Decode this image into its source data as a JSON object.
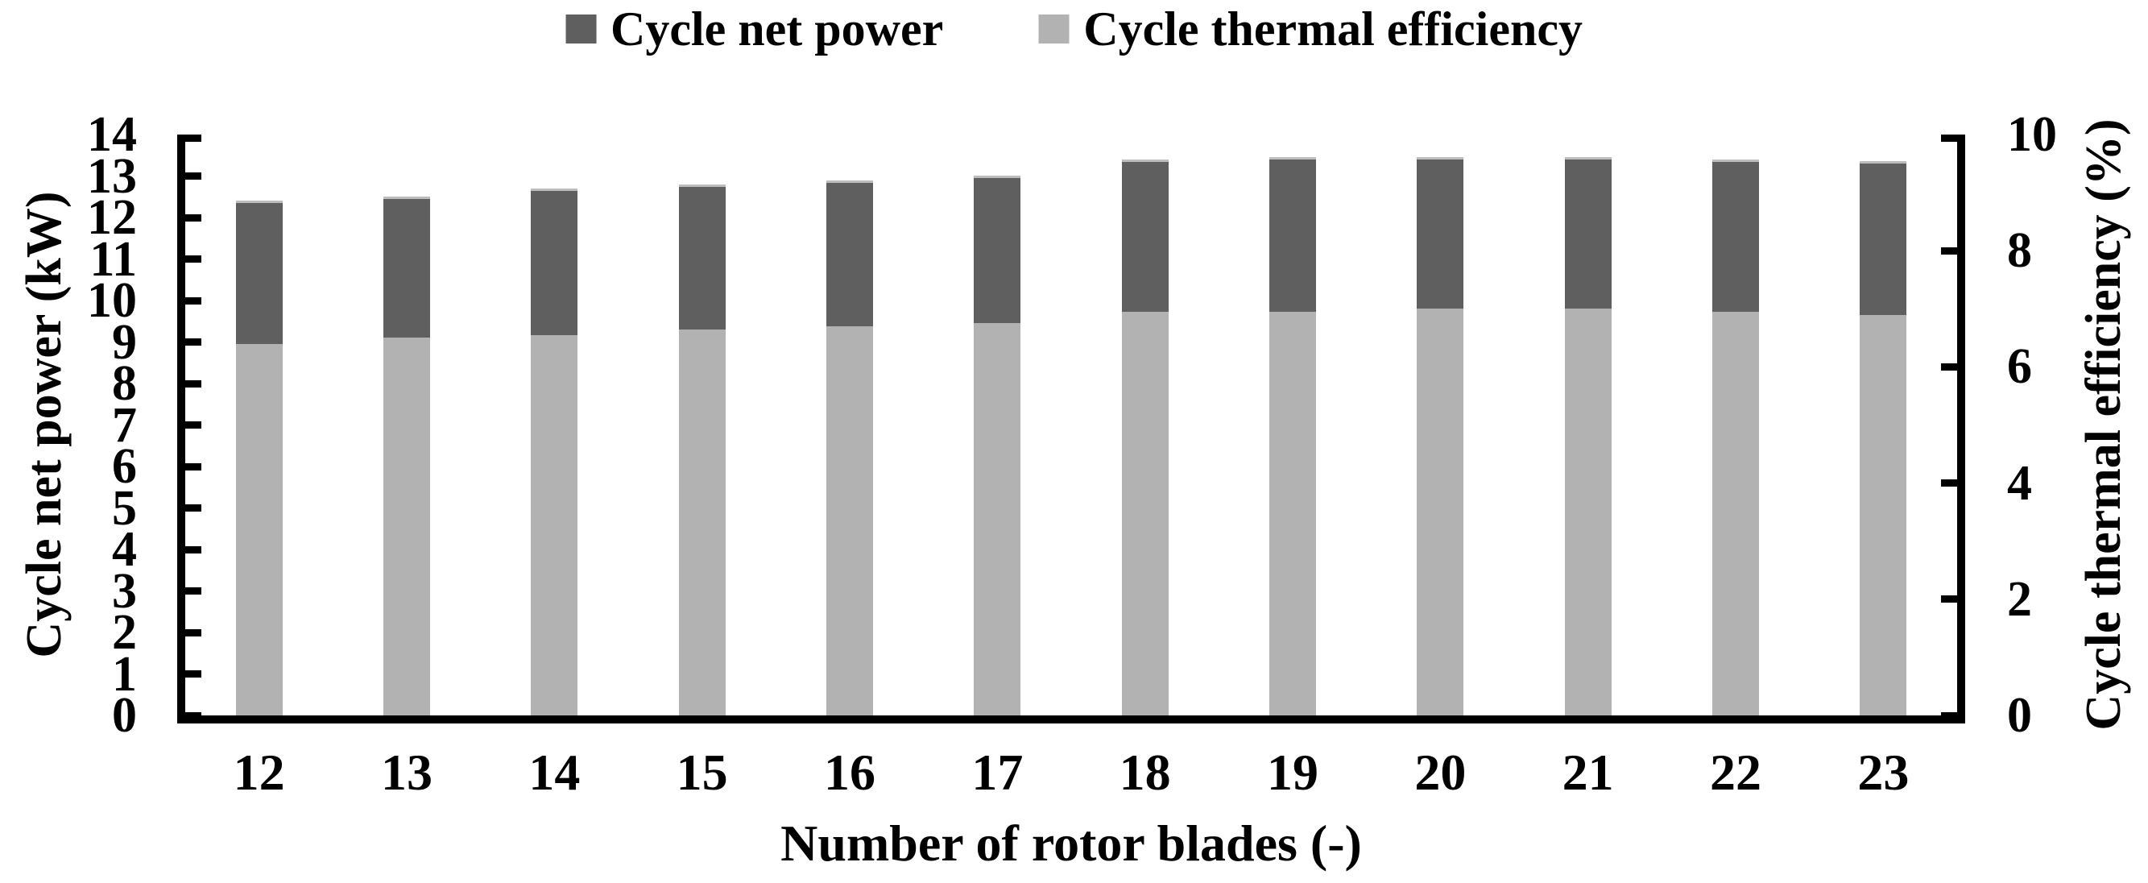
{
  "chart_data": {
    "type": "bar",
    "subtype": "stacked-dual-axis",
    "title": "",
    "xlabel": "Number of rotor blades (-)",
    "ylabel_left": "Cycle net power (kW)",
    "ylabel_right": "Cycle thermal efficiency (%)",
    "categories": [
      "12",
      "13",
      "14",
      "15",
      "16",
      "17",
      "18",
      "19",
      "20",
      "21",
      "22",
      "23"
    ],
    "series": [
      {
        "name": "Cycle net power",
        "axis": "left",
        "unit": "kW",
        "color": "#5f5f5f",
        "role": "total-height-of-stacked-bar",
        "values": [
          12.4,
          12.5,
          12.7,
          12.8,
          12.9,
          13.0,
          13.4,
          13.45,
          13.45,
          13.45,
          13.4,
          13.35
        ]
      },
      {
        "name": "Cycle thermal efficiency",
        "axis": "right",
        "unit": "%",
        "color": "#b2b2b2",
        "role": "bottom-segment-of-stacked-bar",
        "values": [
          6.4,
          6.5,
          6.55,
          6.65,
          6.7,
          6.75,
          6.95,
          6.95,
          7.0,
          7.0,
          6.95,
          6.9
        ]
      }
    ],
    "left_axis": {
      "min": 0,
      "max": 14,
      "step": 1,
      "ticks": [
        0,
        1,
        2,
        3,
        4,
        5,
        6,
        7,
        8,
        9,
        10,
        11,
        12,
        13,
        14
      ]
    },
    "right_axis": {
      "min": 0,
      "max": 10,
      "step": 2,
      "ticks": [
        0,
        2,
        4,
        6,
        8,
        10
      ]
    },
    "grid": false,
    "legend_position": "top-center",
    "colors": {
      "bar_dark": "#5f5f5f",
      "bar_light": "#b2b2b2",
      "axis": "#000000",
      "background": "#ffffff"
    }
  }
}
